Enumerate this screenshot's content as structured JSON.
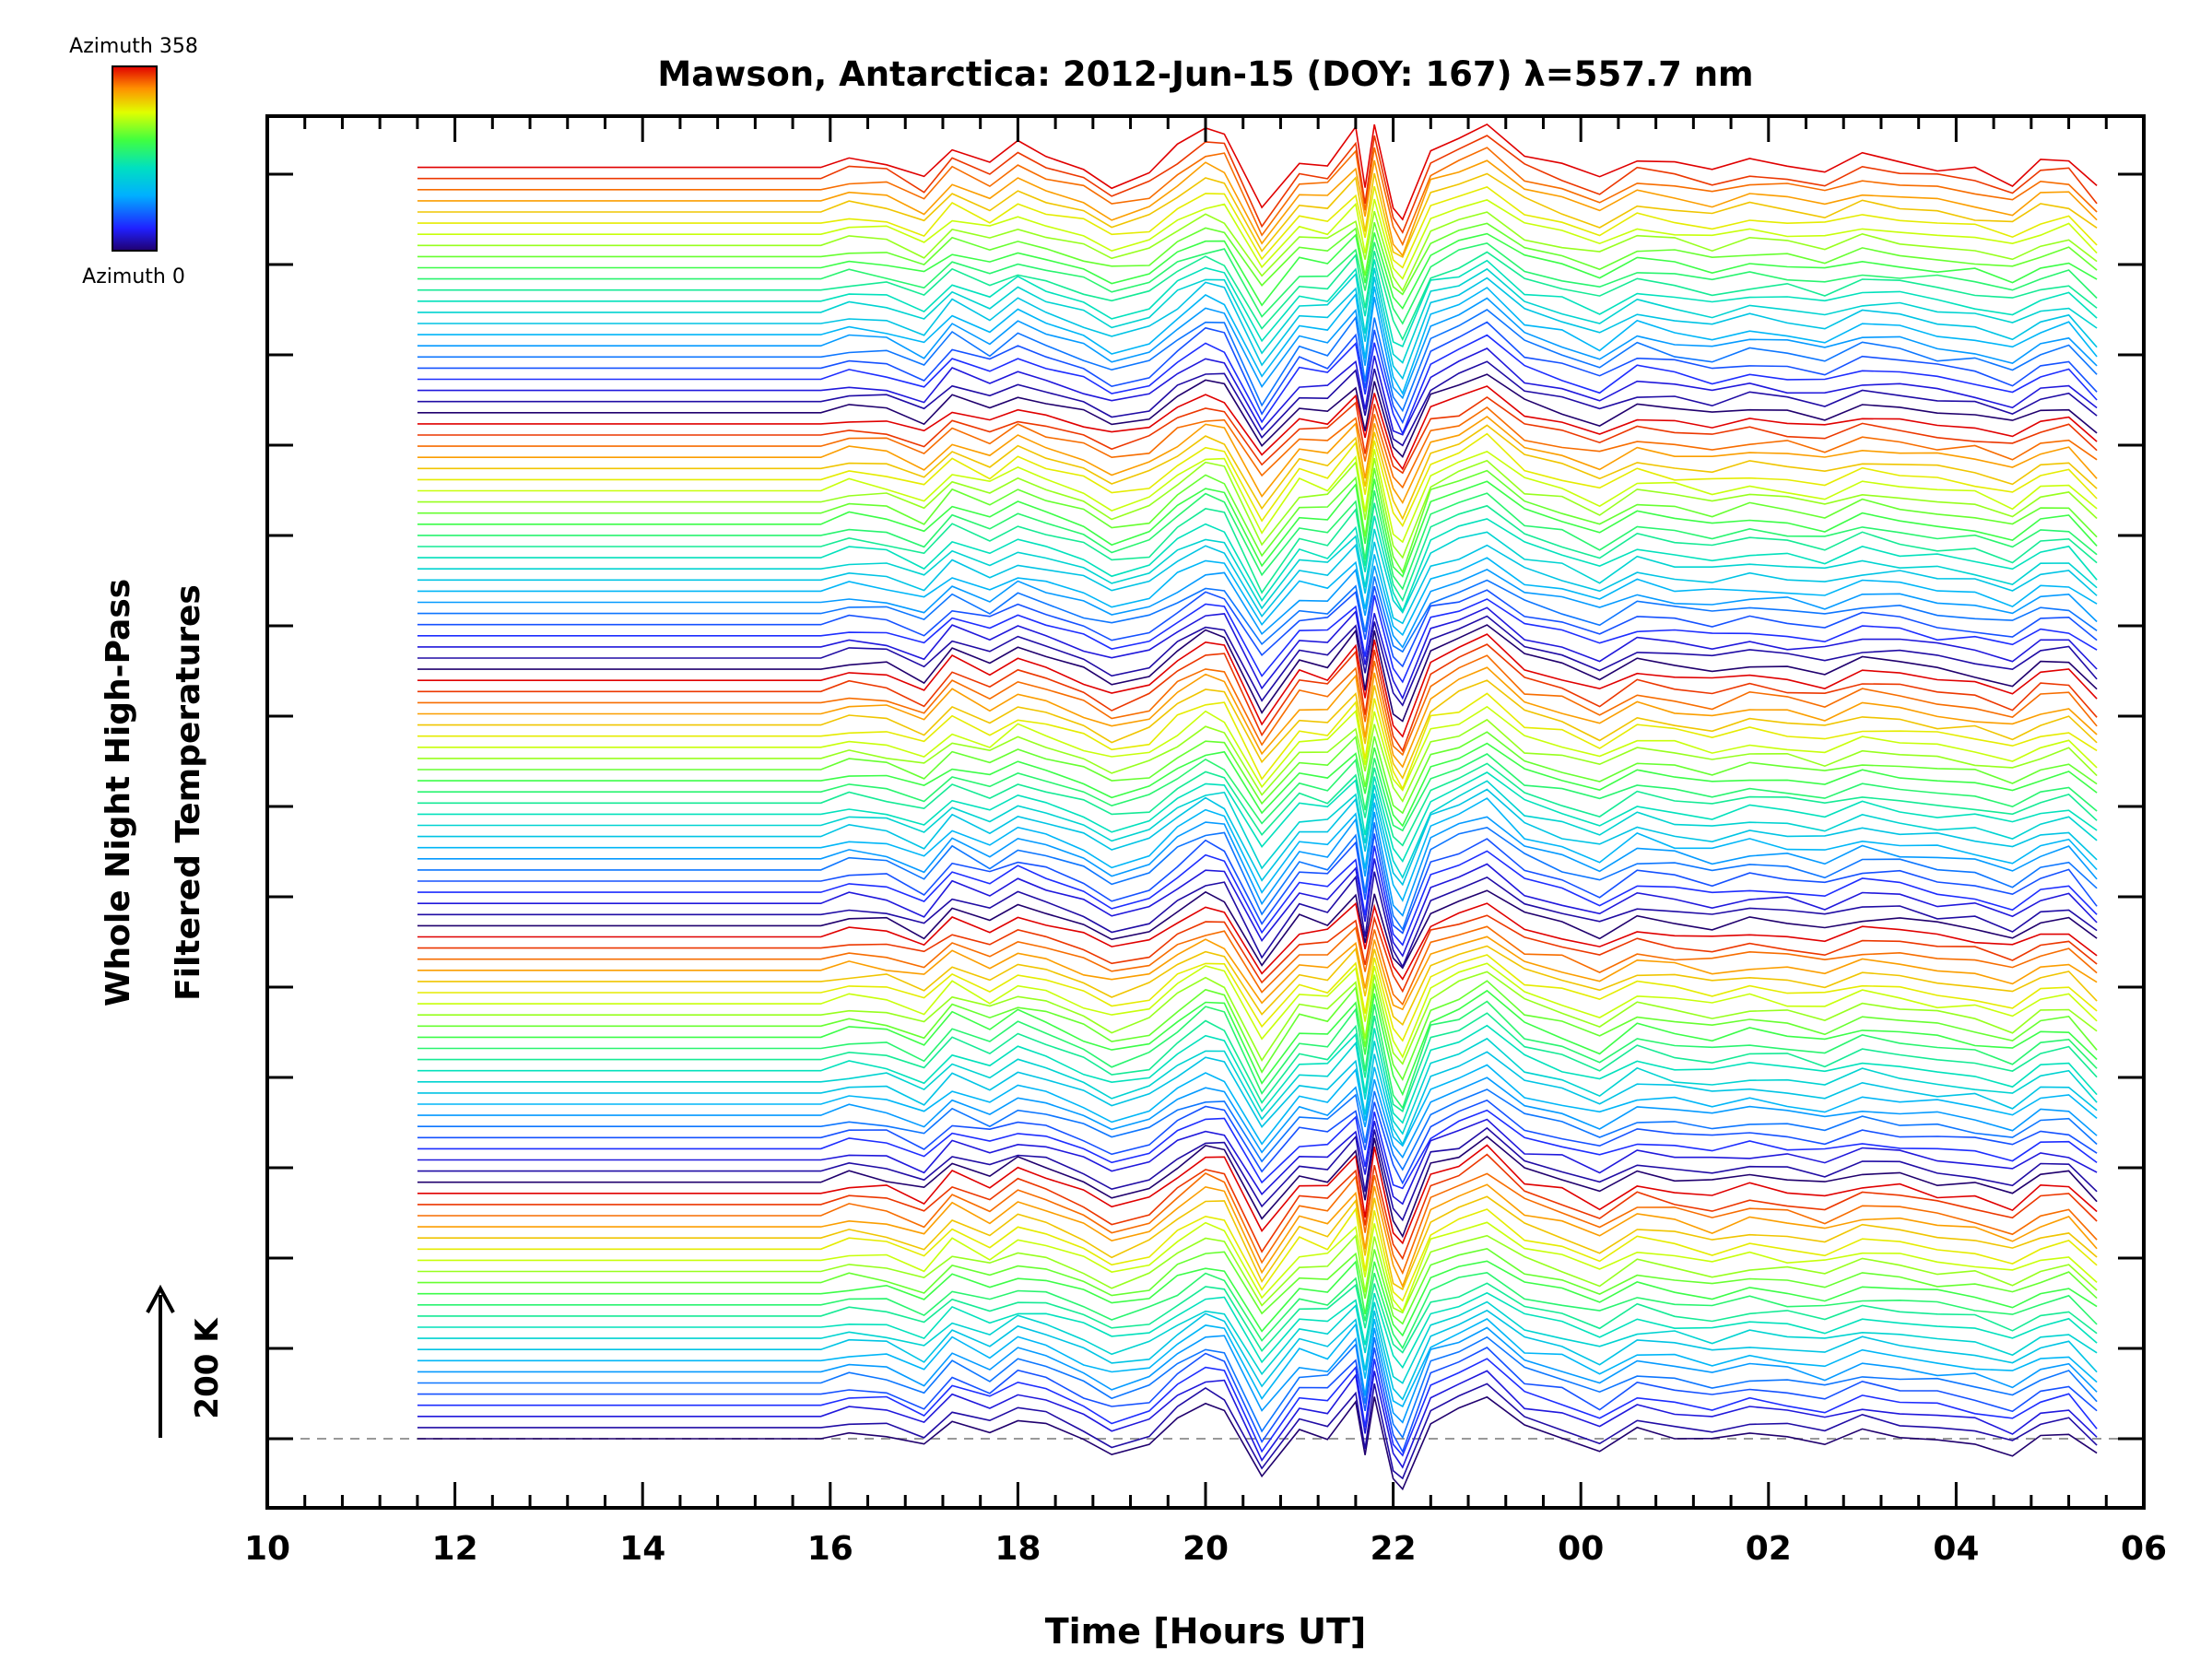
{
  "chart_data": {
    "type": "line",
    "title": "Mawson, Antarctica: 2012-Jun-15 (DOY: 167) λ=557.7 nm",
    "xlabel": "Time [Hours UT]",
    "ylabel_line1": "Whole Night High-Pass",
    "ylabel_line2": "Filtered Temperatures",
    "x_tick_labels": [
      "10",
      "12",
      "14",
      "16",
      "18",
      "20",
      "22",
      "00",
      "02",
      "04",
      "06"
    ],
    "xlim_hours": [
      10,
      30
    ],
    "scale_bar_label": "200 K",
    "colorbar": {
      "top_label": "Azimuth 358",
      "bottom_label": "Azimuth 0"
    },
    "series_count": 115,
    "grid": false,
    "reference_line": "dashed, at lowest trace baseline"
  }
}
